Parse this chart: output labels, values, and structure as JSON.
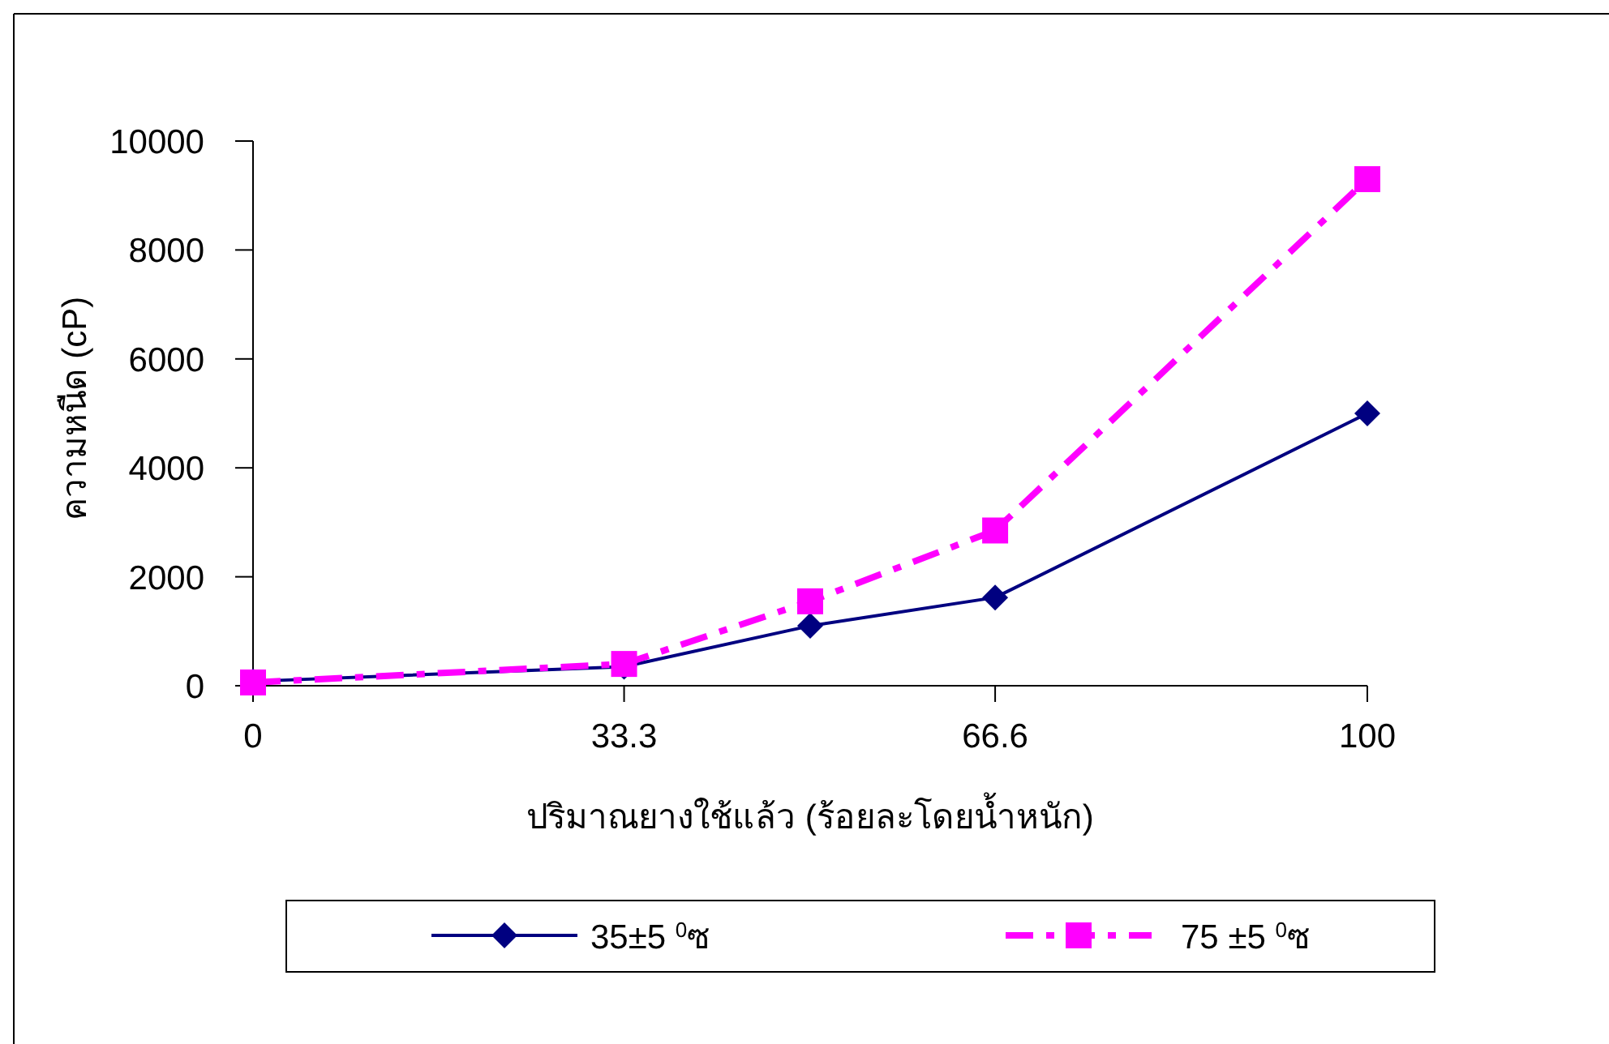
{
  "chart_data": {
    "type": "line",
    "xlabel": "ปริมาณยางใช้แล้ว (ร้อยละโดยน้ำหนัก)",
    "ylabel": "ความหนืด (cP)",
    "x": [
      0,
      33.3,
      50,
      66.6,
      100
    ],
    "xlim": [
      0,
      100
    ],
    "xticks": [
      0,
      33.3,
      66.6,
      100
    ],
    "ylim": [
      0,
      10000
    ],
    "yticks": [
      0,
      2000,
      4000,
      6000,
      8000,
      10000
    ],
    "legend": "bottom",
    "series": [
      {
        "name": "35±5 $^{0}$ซ",
        "color": "#000080",
        "values": [
          80,
          350,
          1100,
          1620,
          5000
        ],
        "marker": "diamond",
        "line_style": "solid"
      },
      {
        "name": "75 ±5 $^{0}$ซ",
        "color": "#ff00ff",
        "values": [
          60,
          400,
          1550,
          2850,
          9300
        ],
        "marker": "square",
        "line_style": "dashdot"
      }
    ]
  }
}
